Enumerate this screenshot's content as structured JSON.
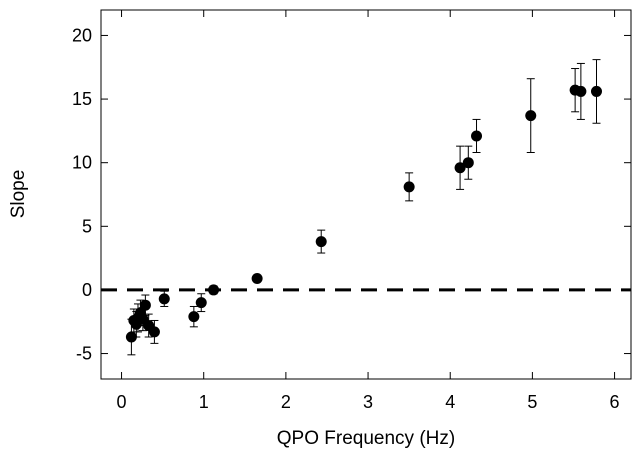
{
  "chart_data": {
    "type": "scatter",
    "title": "",
    "xlabel": "QPO Frequency (Hz)",
    "ylabel": "Slope",
    "xlim": [
      -0.25,
      6.2
    ],
    "ylim": [
      -7,
      22
    ],
    "xticks": [
      0,
      1,
      2,
      3,
      4,
      5,
      6
    ],
    "yticks": [
      -5,
      0,
      5,
      10,
      15,
      20
    ],
    "xtick_labels": [
      "0",
      "1",
      "2",
      "3",
      "4",
      "5",
      "6"
    ],
    "ytick_labels": [
      "-5",
      "0",
      "5",
      "10",
      "15",
      "20"
    ],
    "reference_line": {
      "y": 0,
      "style": "dashed"
    },
    "grid": false,
    "marker_color": "#000000",
    "points": [
      {
        "x": 0.12,
        "y": -3.7,
        "err": 1.4
      },
      {
        "x": 0.15,
        "y": -2.4,
        "err": 0.9
      },
      {
        "x": 0.18,
        "y": -2.7,
        "err": 1.0
      },
      {
        "x": 0.2,
        "y": -2.2,
        "err": 1.1
      },
      {
        "x": 0.23,
        "y": -1.8,
        "err": 1.0
      },
      {
        "x": 0.26,
        "y": -2.3,
        "err": 0.9
      },
      {
        "x": 0.29,
        "y": -1.2,
        "err": 0.8
      },
      {
        "x": 0.33,
        "y": -2.8,
        "err": 0.9
      },
      {
        "x": 0.4,
        "y": -3.3,
        "err": 0.9
      },
      {
        "x": 0.52,
        "y": -0.7,
        "err": 0.6
      },
      {
        "x": 0.88,
        "y": -2.1,
        "err": 0.8
      },
      {
        "x": 0.97,
        "y": -1.0,
        "err": 0.7
      },
      {
        "x": 1.12,
        "y": 0.0,
        "err": 0.3
      },
      {
        "x": 1.65,
        "y": 0.9,
        "err": 0.2
      },
      {
        "x": 2.43,
        "y": 3.8,
        "err": 0.9
      },
      {
        "x": 3.5,
        "y": 8.1,
        "err": 1.1
      },
      {
        "x": 4.12,
        "y": 9.6,
        "err": 1.7
      },
      {
        "x": 4.22,
        "y": 10.0,
        "err": 1.3
      },
      {
        "x": 4.32,
        "y": 12.1,
        "err": 1.3
      },
      {
        "x": 4.98,
        "y": 13.7,
        "err": 2.9
      },
      {
        "x": 5.52,
        "y": 15.7,
        "err": 1.7
      },
      {
        "x": 5.59,
        "y": 15.6,
        "err": 2.2
      },
      {
        "x": 5.78,
        "y": 15.6,
        "err": 2.5
      }
    ]
  }
}
